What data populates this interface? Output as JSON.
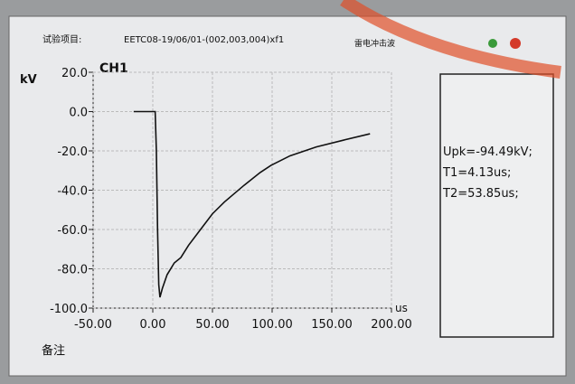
{
  "header": {
    "item_label": "试验项目:",
    "item_value": "EETC08-19/06/01-(002,003,004)xf1",
    "mode": "雷电冲击波"
  },
  "chart_data": {
    "type": "line",
    "title": "CH1",
    "ylabel": "kV",
    "xlabel": "us",
    "x": [
      -16,
      -10,
      -5,
      0,
      2,
      3,
      4,
      5,
      6,
      8,
      12,
      18,
      23.5,
      30,
      40,
      50,
      60,
      76.5,
      90,
      99,
      115,
      137,
      160,
      182
    ],
    "series": [
      {
        "name": "CH1",
        "color": "#111111",
        "values": [
          0,
          0,
          0,
          0,
          0,
          -20,
          -60,
          -88,
          -94.49,
          -90,
          -83,
          -77,
          -74.3,
          -68,
          -60,
          -52,
          -46,
          -37.5,
          -31,
          -27.4,
          -22.5,
          -18,
          -14.5,
          -11.3
        ]
      }
    ],
    "xlim": [
      -50,
      200
    ],
    "ylim": [
      -100,
      20
    ],
    "xticks": [
      {
        "value": -50,
        "label": "-50.00"
      },
      {
        "value": 0,
        "label": "0.00"
      },
      {
        "value": 50,
        "label": "50.00"
      },
      {
        "value": 100,
        "label": "100.00"
      },
      {
        "value": 150,
        "label": "150.00"
      },
      {
        "value": 200,
        "label": "200.00"
      }
    ],
    "yticks": [
      {
        "value": 20,
        "label": "20.0"
      },
      {
        "value": 0,
        "label": "0.0"
      },
      {
        "value": -20,
        "label": "-20.0"
      },
      {
        "value": -40,
        "label": "-40.0"
      },
      {
        "value": -60,
        "label": "-60.0"
      },
      {
        "value": -80,
        "label": "-80.0"
      },
      {
        "value": -100,
        "label": "-100.0"
      }
    ],
    "grid": true
  },
  "results": [
    "Upk=-94.49kV;",
    "T1=4.13us;",
    "T2=53.85us;"
  ],
  "footer": {
    "remark": "备注"
  }
}
